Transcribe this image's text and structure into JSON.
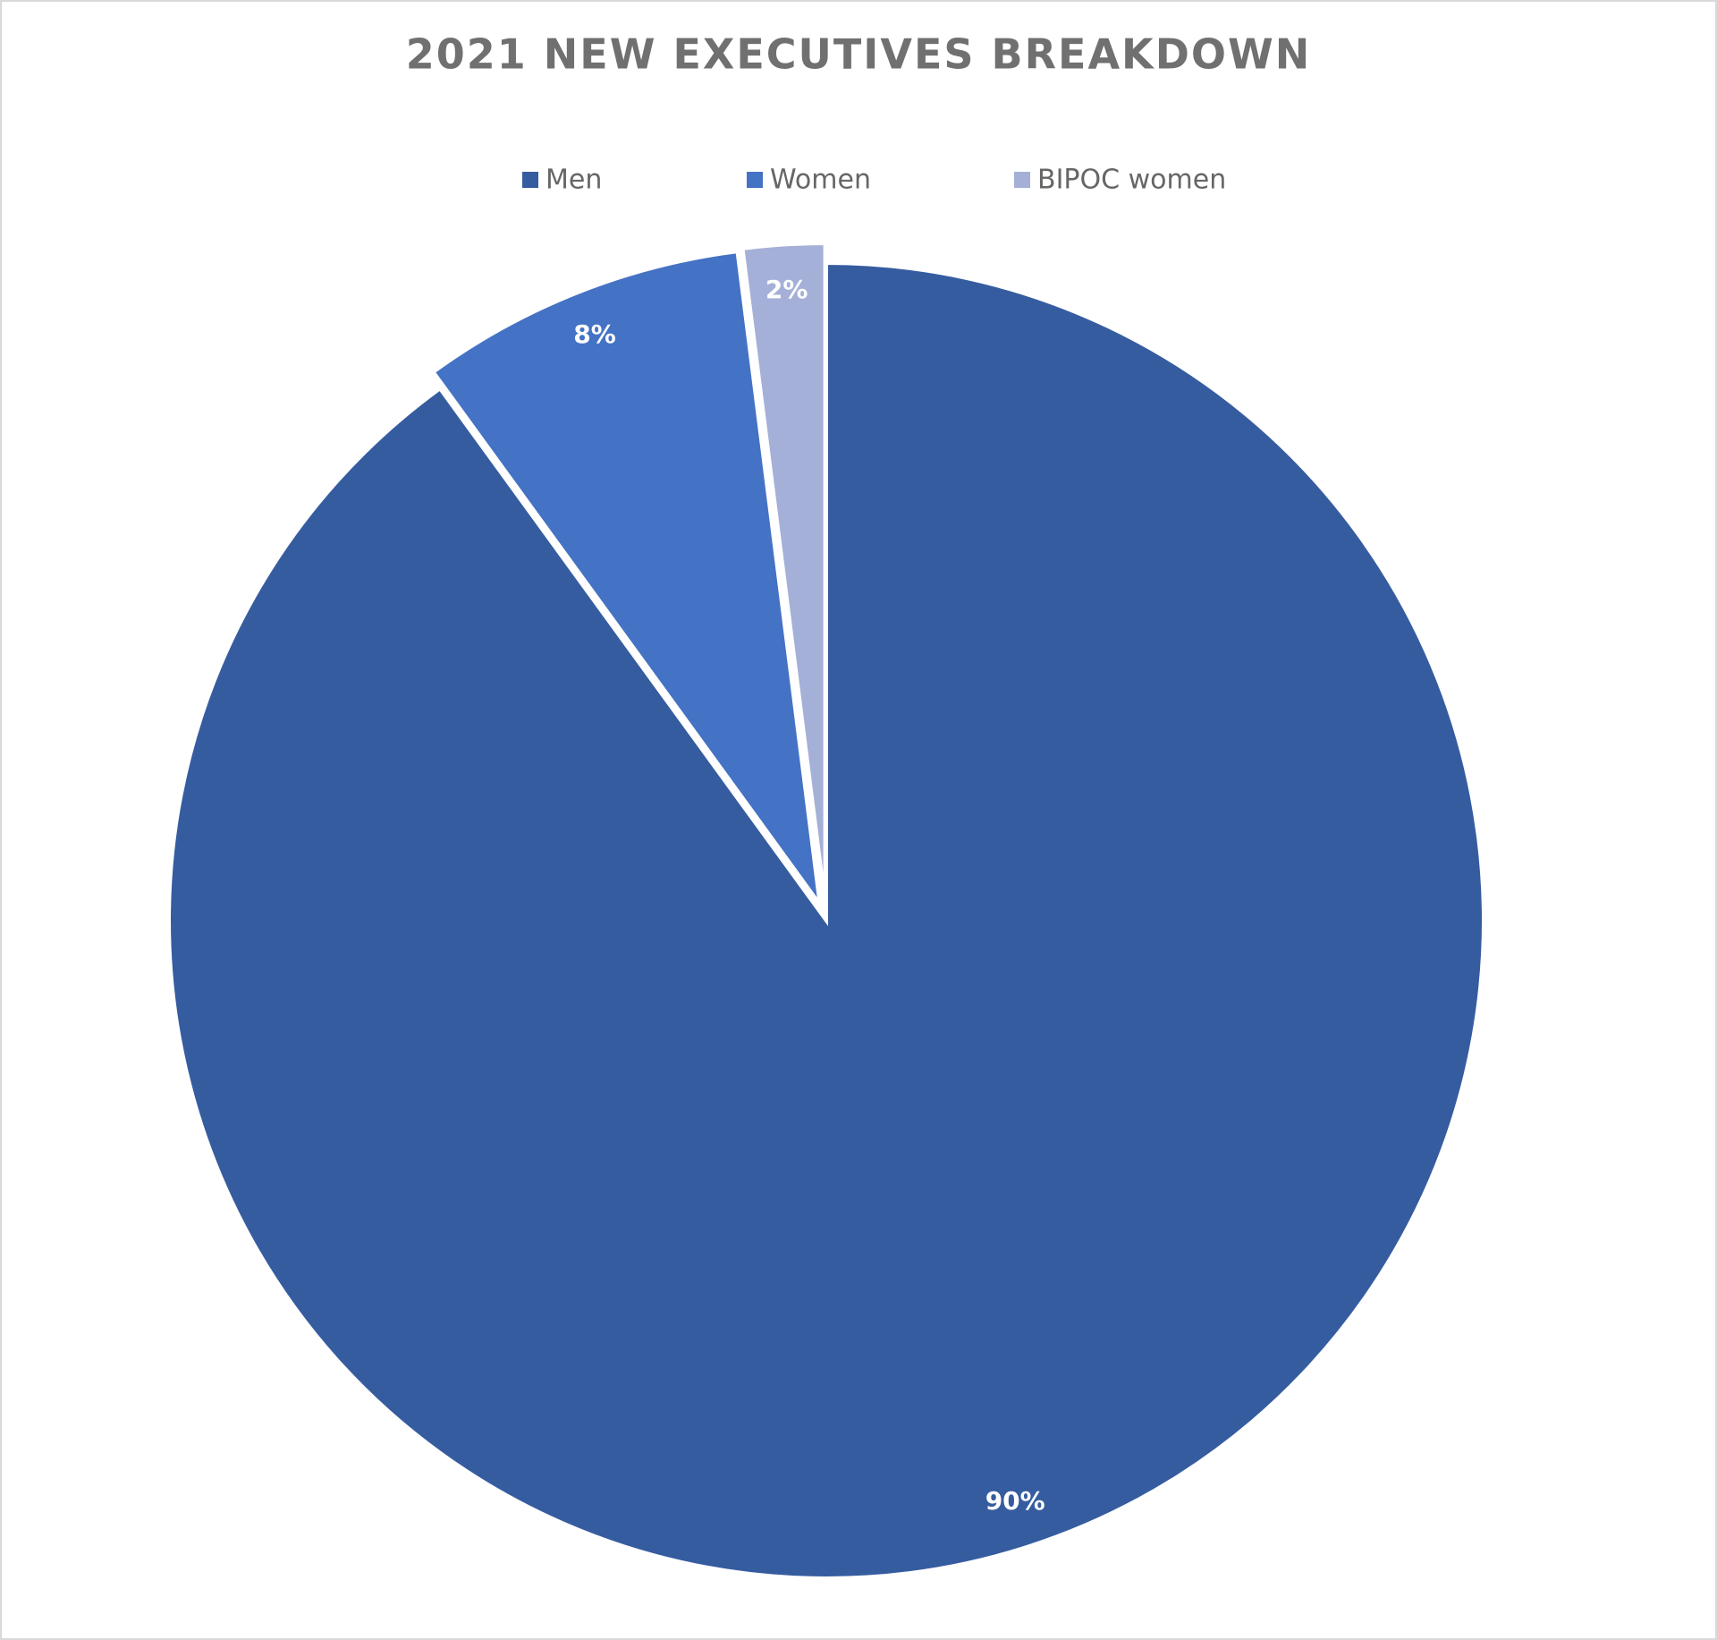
{
  "chart_data": {
    "type": "pie",
    "title": "2021 NEW EXECUTIVES BREAKDOWN",
    "categories": [
      "Men",
      "Women",
      "BIPOC women"
    ],
    "values": [
      90,
      8,
      2
    ],
    "value_labels": [
      "90%",
      "8%",
      "2%"
    ],
    "colors": [
      "#365ca0",
      "#4472c4",
      "#a5b0d8"
    ],
    "legend": "top"
  }
}
